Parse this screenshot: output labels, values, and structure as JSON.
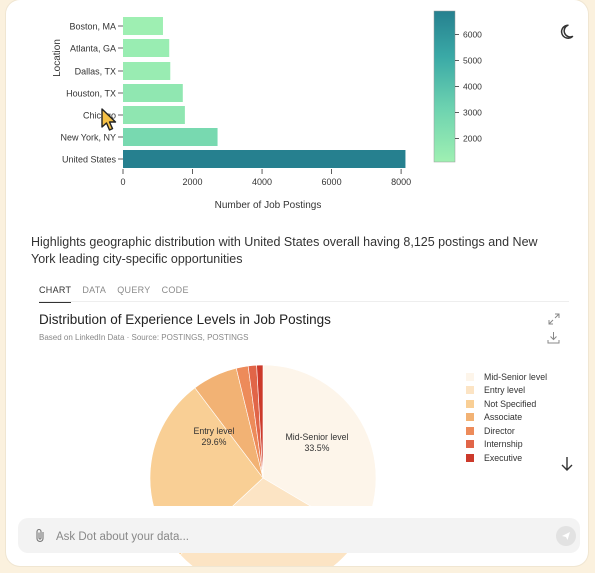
{
  "bar_chart": {
    "chart_data": {
      "type": "bar",
      "orientation": "horizontal",
      "categories": [
        "Boston, MA",
        "Atlanta, GA",
        "Dallas, TX",
        "Houston, TX",
        "Chicago",
        "New York, NY",
        "United States"
      ],
      "values": [
        1150,
        1330,
        1360,
        1720,
        1780,
        2720,
        8125
      ],
      "xlabel": "Number of Job Postings",
      "ylabel": "Location",
      "xlim": [
        0,
        8400
      ],
      "xticks": [
        "0",
        "2000",
        "4000",
        "6000",
        "8000"
      ],
      "colorbar_ticks": [
        "6000",
        "5000",
        "4000",
        "3000",
        "2000"
      ],
      "colorbar_range": [
        1100,
        6900
      ],
      "grid": false
    }
  },
  "caption": "Highlights geographic distribution with United States overall having 8,125 postings and New York leading city-specific opportunities",
  "tabs": [
    "CHART",
    "DATA",
    "QUERY",
    "CODE"
  ],
  "pie_chart": {
    "title": "Distribution of Experience Levels in Job Postings",
    "subtitle": "Based on LinkedIn Data   ·   Source: POSTINGS, POSTINGS",
    "chart_data": {
      "type": "pie",
      "labels": [
        "Mid-Senior level",
        "Entry level",
        "Not Specified",
        "Associate",
        "Director",
        "Internship",
        "Executive"
      ],
      "visible_labels": [
        "Mid-Senior level 33.5%",
        "Entry level 29.6%"
      ],
      "slice_labels": [
        {
          "name": "Mid-Senior level",
          "pct": "33.5%"
        },
        {
          "name": "Entry level",
          "pct": "29.6%"
        }
      ],
      "colors": [
        "#fdf5ea",
        "#fce4c4",
        "#f9cf95",
        "#f2b274",
        "#ed8b5a",
        "#e16548",
        "#cc3a2b"
      ],
      "legend_position": "right"
    }
  },
  "input": {
    "placeholder": "Ask Dot about your data..."
  },
  "icons": {
    "theme": "moon-icon",
    "expand": "expand-icon",
    "download": "download-icon",
    "scroll": "arrow-down-icon",
    "attach": "paperclip-icon",
    "send": "send-icon"
  }
}
